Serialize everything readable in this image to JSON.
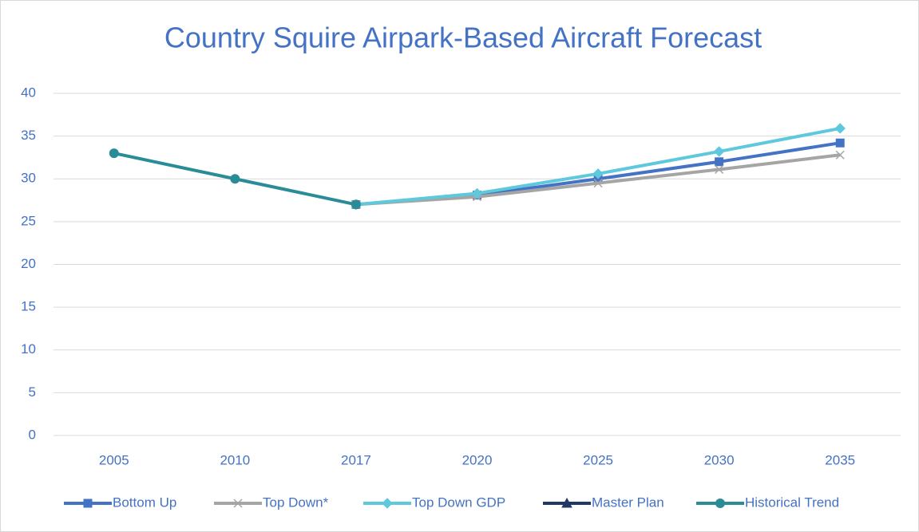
{
  "chart_data": {
    "type": "line",
    "title": "Country Squire Airpark-Based Aircraft Forecast",
    "categories": [
      "2005",
      "2010",
      "2017",
      "2020",
      "2025",
      "2030",
      "2035"
    ],
    "series": [
      {
        "name": "Bottom Up",
        "color": "#4472c4",
        "marker": "square",
        "values": [
          null,
          null,
          27,
          28.1,
          30,
          32,
          34.2
        ]
      },
      {
        "name": "Top Down*",
        "color": "#a5a5a5",
        "marker": "x",
        "values": [
          null,
          null,
          27,
          27.9,
          29.5,
          31.1,
          32.8
        ]
      },
      {
        "name": "Top Down GDP",
        "color": "#5ec8dc",
        "marker": "diamond",
        "values": [
          null,
          null,
          27,
          28.3,
          30.6,
          33.2,
          35.9
        ]
      },
      {
        "name": "Master Plan",
        "color": "#203864",
        "marker": "triangle",
        "values": [
          null,
          null,
          null,
          null,
          null,
          null,
          null
        ]
      },
      {
        "name": "Historical Trend",
        "color": "#2a8c96",
        "marker": "circle",
        "values": [
          33,
          30,
          27,
          null,
          null,
          null,
          null
        ]
      }
    ],
    "ylim": [
      0,
      40
    ],
    "yticks": [
      0,
      5,
      10,
      15,
      20,
      25,
      30,
      35,
      40
    ],
    "grid": true,
    "legend": "bottom"
  }
}
